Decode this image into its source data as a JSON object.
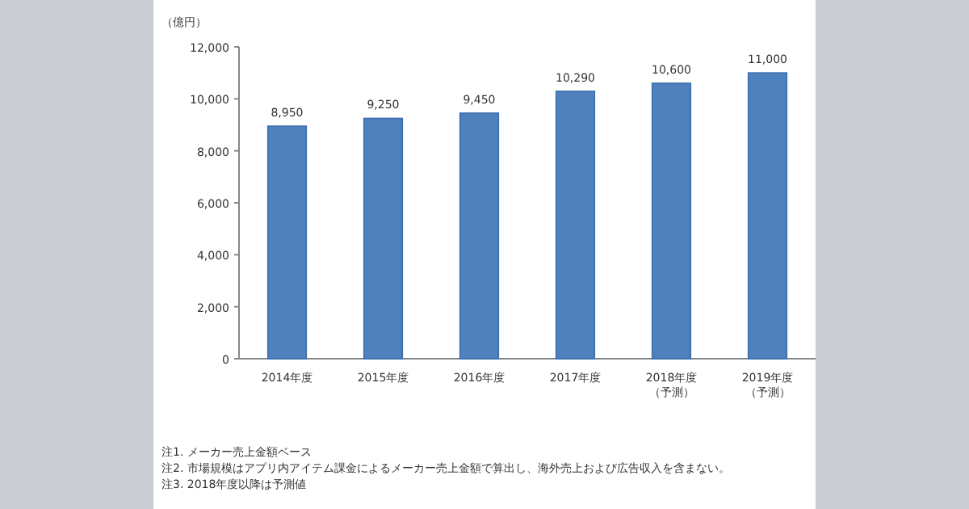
{
  "chart_data": {
    "type": "bar",
    "ylabel": "（億円）",
    "categories": [
      "2014年度",
      "2015年度",
      "2016年度",
      "2017年度",
      "2018年度（予測）",
      "2019年度（予測）"
    ],
    "values": [
      8950,
      9250,
      9450,
      10290,
      10600,
      11000
    ],
    "color": "#4f81bd",
    "ylim": [
      0,
      12000
    ],
    "yticks": [
      {
        "value": 0,
        "label": "0"
      },
      {
        "value": 2000,
        "label": "2,000"
      },
      {
        "value": 4000,
        "label": "4,000"
      },
      {
        "value": 6000,
        "label": "6,000"
      },
      {
        "value": 8000,
        "label": "8,000"
      },
      {
        "value": 10000,
        "label": "10,000"
      },
      {
        "value": 12000,
        "label": "12,000"
      }
    ],
    "value_labels": [
      "8,950",
      "9,250",
      "9,450",
      "10,290",
      "10,600",
      "11,000"
    ],
    "grid": false,
    "annotations": [
      "注1. メーカー売上金額ベース",
      "注2. 市場規模はアプリ内アイテム課金によるメーカー売上金額で算出し、海外売上および広告収入を含まない。",
      "注3. 2018年度以降は予測値"
    ]
  }
}
